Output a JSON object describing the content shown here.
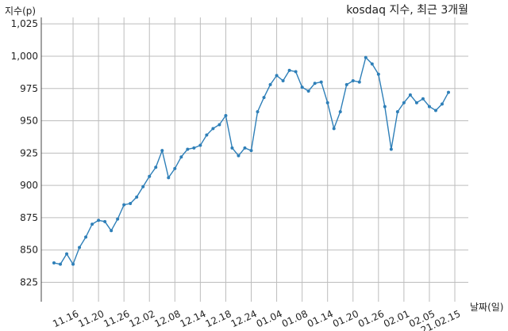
{
  "chart_data": {
    "type": "line",
    "title": "kosdaq 지수, 최근 3개월",
    "ylabel": "지수(p)",
    "xlabel": "날짜(일)",
    "ylim": [
      810,
      1030
    ],
    "yticks": [
      "825",
      "850",
      "875",
      "900",
      "925",
      "950",
      "975",
      "1,000",
      "1,025"
    ],
    "ytick_values": [
      825,
      850,
      875,
      900,
      925,
      950,
      975,
      1000,
      1025
    ],
    "xticks": [
      "11.16",
      "11.20",
      "11.26",
      "12.02",
      "12.08",
      "12.14",
      "12.18",
      "12.24",
      "01.04",
      "01.08",
      "01.14",
      "01.20",
      "01.26",
      "02.01",
      "02.05",
      "21.02.15"
    ],
    "xtick_index": [
      3,
      7,
      11,
      15,
      19,
      23,
      27,
      31,
      35,
      39,
      43,
      47,
      51,
      55,
      59,
      63
    ],
    "grid": true,
    "line_color": "#2e7fb8",
    "series": [
      {
        "values": [
          840,
          839,
          847,
          839,
          852,
          860,
          870,
          873,
          872,
          865,
          874,
          885,
          886,
          891,
          899,
          907,
          914,
          927,
          906,
          913,
          922,
          928,
          929,
          931,
          939,
          944,
          947,
          954,
          929,
          923,
          929,
          927,
          957,
          968,
          978,
          985,
          981,
          989,
          988,
          976,
          973,
          979,
          980,
          964,
          944,
          957,
          978,
          981,
          980,
          999,
          994,
          986,
          961,
          928,
          957,
          964,
          970,
          964,
          967,
          961,
          958,
          963,
          972
        ]
      }
    ]
  }
}
